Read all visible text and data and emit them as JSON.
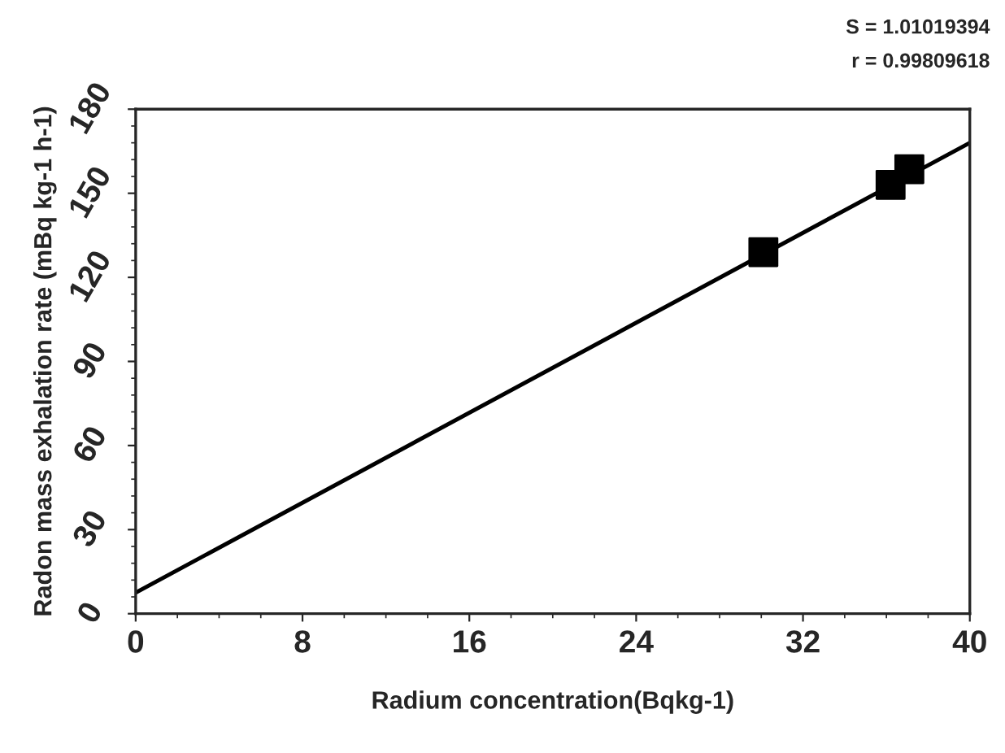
{
  "chart_data": {
    "type": "scatter",
    "xlabel": "Radium concentration(Bqkg-1)",
    "ylabel": "Radon mass exhalation rate (mBq kg-1 h-1)",
    "annotations": [
      "S = 1.01019394",
      "r = 0.99809618"
    ],
    "series": [
      {
        "color": "#000000",
        "marker": "square",
        "x": [
          30.1,
          36.2,
          37.1
        ],
        "values": [
          129,
          153,
          158.6
        ]
      },
      {
        "type": "line",
        "color": "#000000",
        "marker": "none",
        "line_style": "solid",
        "x": [
          0,
          40
        ],
        "values": [
          7.5,
          168
        ]
      }
    ],
    "xlim": [
      0,
      40
    ],
    "xticks": [
      0,
      8,
      16,
      24,
      32,
      40
    ],
    "ylim": [
      0,
      180
    ],
    "yticks": [
      0,
      30,
      60,
      90,
      120,
      150,
      180
    ],
    "grid": false,
    "legend": false
  }
}
